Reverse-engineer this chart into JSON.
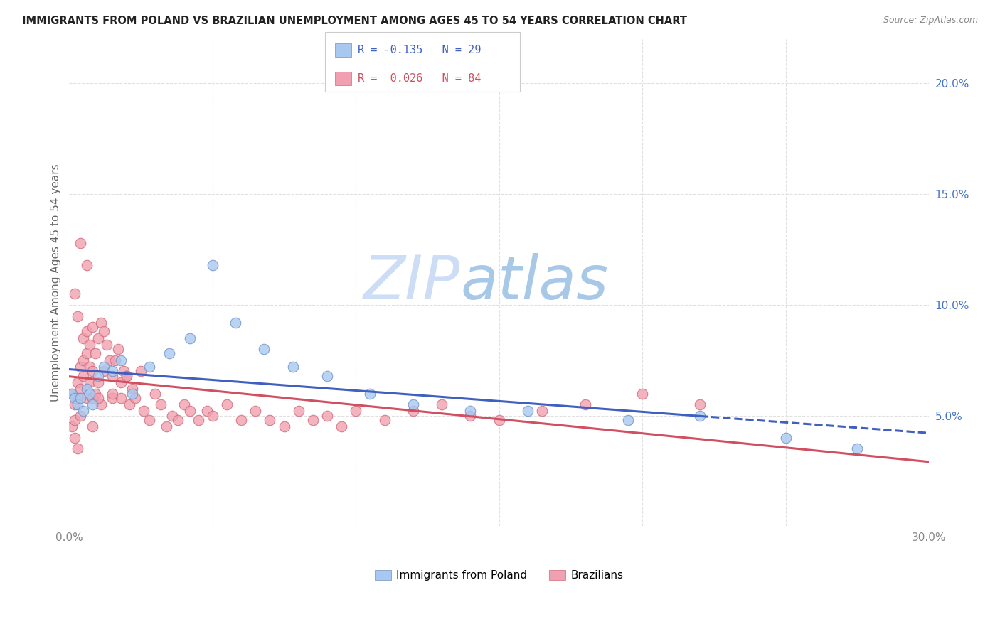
{
  "title": "IMMIGRANTS FROM POLAND VS BRAZILIAN UNEMPLOYMENT AMONG AGES 45 TO 54 YEARS CORRELATION CHART",
  "source": "Source: ZipAtlas.com",
  "ylabel": "Unemployment Among Ages 45 to 54 years",
  "xlim": [
    0,
    0.3
  ],
  "ylim": [
    0,
    0.22
  ],
  "xtick_positions": [
    0.0,
    0.05,
    0.1,
    0.15,
    0.2,
    0.25,
    0.3
  ],
  "xticklabels": [
    "0.0%",
    "",
    "",
    "",
    "",
    "",
    "30.0%"
  ],
  "yticks_right": [
    0.05,
    0.1,
    0.15,
    0.2
  ],
  "ytick_right_labels": [
    "5.0%",
    "10.0%",
    "15.0%",
    "20.0%"
  ],
  "legend_label_blue": "Immigrants from Poland",
  "legend_label_pink": "Brazilians",
  "blue_scatter_color": "#a8c8f0",
  "pink_scatter_color": "#f0a0b0",
  "blue_edge_color": "#7090c8",
  "pink_edge_color": "#d06878",
  "blue_line_color": "#4060c0",
  "pink_line_color": "#d05060",
  "watermark_zip": "#ccddf0",
  "watermark_atlas": "#a0c0e0",
  "background_color": "#ffffff",
  "grid_color": "#e0e0e0",
  "title_color": "#222222",
  "source_color": "#888888",
  "ylabel_color": "#666666",
  "right_axis_color": "#4472c4",
  "bottom_tick_color": "#888888",
  "legend_r_blue": "R = -0.135",
  "legend_n_blue": "N = 29",
  "legend_r_pink": "R =  0.026",
  "legend_n_pink": "N = 84",
  "poland_x": [
    0.001,
    0.002,
    0.003,
    0.004,
    0.005,
    0.006,
    0.007,
    0.008,
    0.01,
    0.012,
    0.015,
    0.018,
    0.022,
    0.028,
    0.035,
    0.042,
    0.05,
    0.058,
    0.068,
    0.078,
    0.09,
    0.105,
    0.12,
    0.14,
    0.16,
    0.195,
    0.22,
    0.25,
    0.275
  ],
  "poland_y": [
    0.06,
    0.058,
    0.055,
    0.058,
    0.052,
    0.062,
    0.06,
    0.055,
    0.068,
    0.072,
    0.07,
    0.075,
    0.06,
    0.072,
    0.078,
    0.085,
    0.118,
    0.092,
    0.08,
    0.072,
    0.068,
    0.06,
    0.055,
    0.052,
    0.052,
    0.048,
    0.05,
    0.04,
    0.035
  ],
  "brazil_x": [
    0.001,
    0.001,
    0.002,
    0.002,
    0.002,
    0.003,
    0.003,
    0.003,
    0.004,
    0.004,
    0.004,
    0.005,
    0.005,
    0.005,
    0.006,
    0.006,
    0.006,
    0.007,
    0.007,
    0.007,
    0.008,
    0.008,
    0.008,
    0.009,
    0.009,
    0.01,
    0.01,
    0.011,
    0.011,
    0.012,
    0.012,
    0.013,
    0.014,
    0.015,
    0.015,
    0.016,
    0.017,
    0.018,
    0.018,
    0.019,
    0.02,
    0.021,
    0.022,
    0.023,
    0.025,
    0.026,
    0.028,
    0.03,
    0.032,
    0.034,
    0.036,
    0.038,
    0.04,
    0.042,
    0.045,
    0.048,
    0.05,
    0.055,
    0.06,
    0.065,
    0.07,
    0.075,
    0.08,
    0.085,
    0.09,
    0.095,
    0.1,
    0.11,
    0.12,
    0.13,
    0.14,
    0.15,
    0.165,
    0.18,
    0.2,
    0.22,
    0.002,
    0.003,
    0.004,
    0.006,
    0.008,
    0.01,
    0.015,
    0.02
  ],
  "brazil_y": [
    0.06,
    0.045,
    0.055,
    0.048,
    0.04,
    0.065,
    0.058,
    0.035,
    0.062,
    0.05,
    0.072,
    0.075,
    0.068,
    0.085,
    0.078,
    0.088,
    0.058,
    0.082,
    0.072,
    0.065,
    0.09,
    0.058,
    0.045,
    0.078,
    0.06,
    0.085,
    0.065,
    0.092,
    0.055,
    0.088,
    0.07,
    0.082,
    0.075,
    0.068,
    0.058,
    0.075,
    0.08,
    0.065,
    0.058,
    0.07,
    0.068,
    0.055,
    0.062,
    0.058,
    0.07,
    0.052,
    0.048,
    0.06,
    0.055,
    0.045,
    0.05,
    0.048,
    0.055,
    0.052,
    0.048,
    0.052,
    0.05,
    0.055,
    0.048,
    0.052,
    0.048,
    0.045,
    0.052,
    0.048,
    0.05,
    0.045,
    0.052,
    0.048,
    0.052,
    0.055,
    0.05,
    0.048,
    0.052,
    0.055,
    0.06,
    0.055,
    0.105,
    0.095,
    0.128,
    0.118,
    0.07,
    0.058,
    0.06,
    0.068
  ]
}
